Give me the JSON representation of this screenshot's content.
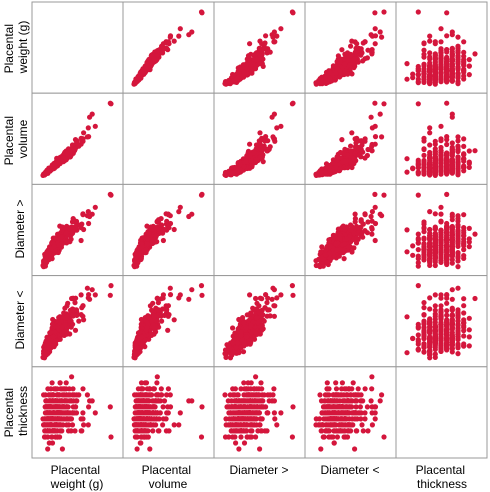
{
  "chart_data": {
    "type": "scatter",
    "variables": [
      {
        "key": "placental_weight",
        "label_lines": [
          "Placental",
          "weight (g)"
        ]
      },
      {
        "key": "placental_volume",
        "label_lines": [
          "Placental",
          "volume"
        ]
      },
      {
        "key": "diameter_gt",
        "label_lines": [
          "Diameter >"
        ]
      },
      {
        "key": "diameter_lt",
        "label_lines": [
          "Diameter <"
        ]
      },
      {
        "key": "placental_thickness",
        "label_lines": [
          "Placental",
          "thickness"
        ]
      }
    ],
    "diagonal_empty": true,
    "grid": false,
    "point_color": "#d4163c",
    "panel_border_color": "#999999"
  }
}
